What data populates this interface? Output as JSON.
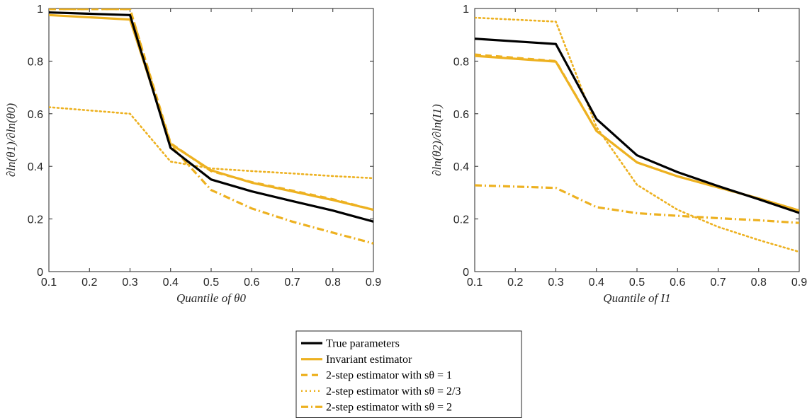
{
  "colors": {
    "true": "#000000",
    "estimator": "#EDB120",
    "axis": "#262626"
  },
  "legend": {
    "placement": "bottom-center",
    "entries": [
      {
        "label": "True parameters",
        "color": "#000000",
        "style": "solid"
      },
      {
        "label": "Invariant estimator",
        "color": "#EDB120",
        "style": "solid"
      },
      {
        "label": "2-step estimator with sθ = 1",
        "color": "#EDB120",
        "style": "dashed"
      },
      {
        "label": "2-step estimator with sθ = 2/3",
        "color": "#EDB120",
        "style": "dotted"
      },
      {
        "label": "2-step estimator with sθ = 2",
        "color": "#EDB120",
        "style": "dashdot"
      }
    ]
  },
  "chart_data": [
    {
      "type": "line",
      "title": "",
      "xlabel": "Quantile of θ0",
      "ylabel": "∂ln(θ1)/∂ln(θ0)",
      "xlim": [
        0.1,
        0.9
      ],
      "ylim": [
        0,
        1
      ],
      "grid": false,
      "x_ticks": [
        "0.1",
        "0.2",
        "0.3",
        "0.4",
        "0.5",
        "0.6",
        "0.7",
        "0.8",
        "0.9"
      ],
      "y_ticks": [
        "0",
        "0.2",
        "0.4",
        "0.6",
        "0.8",
        "1"
      ],
      "x": [
        0.1,
        0.3,
        0.4,
        0.5,
        0.6,
        0.7,
        0.8,
        0.9
      ],
      "series": [
        {
          "name": "True parameters",
          "color": "#000000",
          "style": "solid",
          "values": [
            0.985,
            0.975,
            0.47,
            0.35,
            0.305,
            0.268,
            0.232,
            0.19
          ]
        },
        {
          "name": "Invariant estimator",
          "color": "#EDB120",
          "style": "solid",
          "values": [
            0.975,
            0.958,
            0.485,
            0.385,
            0.338,
            0.305,
            0.272,
            0.235
          ]
        },
        {
          "name": "2-step estimator with sθ = 1",
          "color": "#EDB120",
          "style": "dashed",
          "values": [
            0.998,
            0.998,
            0.488,
            0.382,
            0.34,
            0.308,
            0.275,
            0.235
          ]
        },
        {
          "name": "2-step estimator with sθ = 2/3",
          "color": "#EDB120",
          "style": "dotted",
          "values": [
            0.625,
            0.6,
            0.418,
            0.392,
            0.382,
            0.373,
            0.363,
            0.355
          ]
        },
        {
          "name": "2-step estimator with sθ = 2",
          "color": "#EDB120",
          "style": "dashdot",
          "values": [
            0.998,
            0.998,
            0.48,
            0.31,
            0.24,
            0.19,
            0.148,
            0.107
          ]
        }
      ]
    },
    {
      "type": "line",
      "title": "",
      "xlabel": "Quantile of I1",
      "ylabel": "∂ln(θ2)/∂ln(I1)",
      "xlim": [
        0.1,
        0.9
      ],
      "ylim": [
        0,
        1
      ],
      "grid": false,
      "x_ticks": [
        "0.1",
        "0.2",
        "0.3",
        "0.4",
        "0.5",
        "0.6",
        "0.7",
        "0.8",
        "0.9"
      ],
      "y_ticks": [
        "0",
        "0.2",
        "0.4",
        "0.6",
        "0.8",
        "1"
      ],
      "x": [
        0.1,
        0.3,
        0.4,
        0.5,
        0.6,
        0.7,
        0.8,
        0.9
      ],
      "series": [
        {
          "name": "True parameters",
          "color": "#000000",
          "style": "solid",
          "values": [
            0.885,
            0.865,
            0.58,
            0.442,
            0.378,
            0.325,
            0.275,
            0.223
          ]
        },
        {
          "name": "Invariant estimator",
          "color": "#EDB120",
          "style": "solid",
          "values": [
            0.82,
            0.798,
            0.535,
            0.415,
            0.362,
            0.32,
            0.278,
            0.232
          ]
        },
        {
          "name": "2-step estimator with sθ = 1",
          "color": "#EDB120",
          "style": "dashed",
          "values": [
            0.825,
            0.8,
            0.535,
            0.415,
            0.362,
            0.32,
            0.278,
            0.232
          ]
        },
        {
          "name": "2-step estimator with sθ = 2/3",
          "color": "#EDB120",
          "style": "dotted",
          "values": [
            0.965,
            0.95,
            0.55,
            0.33,
            0.235,
            0.17,
            0.12,
            0.075
          ]
        },
        {
          "name": "2-step estimator with sθ = 2",
          "color": "#EDB120",
          "style": "dashdot",
          "values": [
            0.328,
            0.318,
            0.245,
            0.222,
            0.212,
            0.203,
            0.195,
            0.185
          ]
        }
      ]
    }
  ]
}
